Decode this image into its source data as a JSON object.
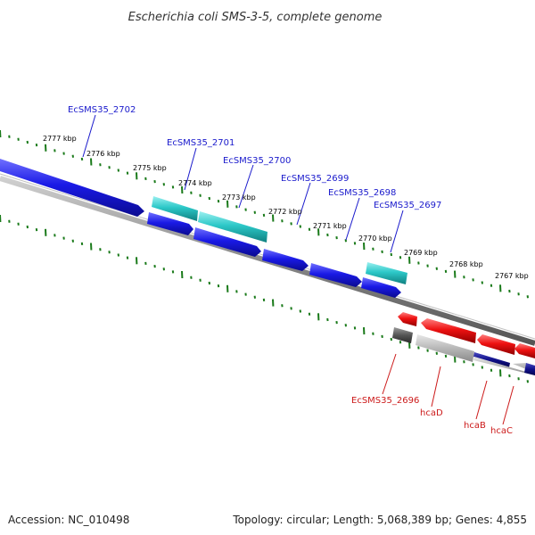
{
  "title": "Escherichia coli SMS-3-5, complete genome",
  "footer": {
    "accession": "Accession: NC_010498",
    "topology": "Topology: circular; Length: 5,068,389 bp; Genes: 4,855"
  },
  "colors": {
    "forward_cds": "#1a1ae6",
    "forward_rna": "#2cc8c8",
    "reverse_cds": "#ee1111",
    "reverse_other": "#b4b4b4",
    "reverse_dark": "#555555",
    "reverse_navy": "#10108a",
    "backbone": "#777777",
    "ticks": "#1a7a1a",
    "label_forward": "#1a1acc",
    "label_reverse": "#cc1a1a"
  },
  "kbp_labels": [
    {
      "text": "2777 kbp"
    },
    {
      "text": "2776 kbp"
    },
    {
      "text": "2775 kbp"
    },
    {
      "text": "2774 kbp"
    },
    {
      "text": "2773 kbp"
    },
    {
      "text": "2772 kbp"
    },
    {
      "text": "2771 kbp"
    },
    {
      "text": "2770 kbp"
    },
    {
      "text": "2769 kbp"
    },
    {
      "text": "2768 kbp"
    },
    {
      "text": "2767 kbp"
    }
  ],
  "forward_labels": [
    {
      "text": "EcSMS35_2702"
    },
    {
      "text": "EcSMS35_2701"
    },
    {
      "text": "EcSMS35_2700"
    },
    {
      "text": "EcSMS35_2699"
    },
    {
      "text": "EcSMS35_2698"
    },
    {
      "text": "EcSMS35_2697"
    }
  ],
  "reverse_labels": [
    {
      "text": "EcSMS35_2696"
    },
    {
      "text": "hcaD"
    },
    {
      "text": "hcaB"
    },
    {
      "text": "hcaC"
    }
  ]
}
